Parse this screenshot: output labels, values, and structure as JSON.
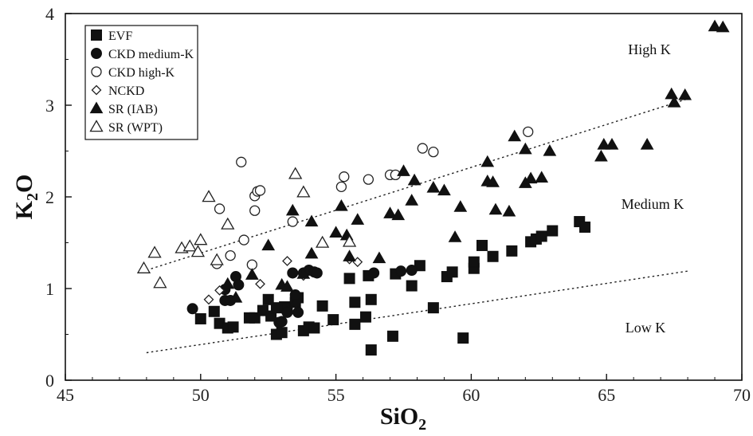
{
  "chart_data": {
    "type": "scatter",
    "xlabel": "SiO",
    "xlabel_sub": "2",
    "ylabel": "K",
    "ylabel_sub": "2",
    "ylabel_tail": "O",
    "xlim": [
      45,
      70
    ],
    "ylim": [
      0,
      4
    ],
    "xticks": [
      "45",
      "50",
      "55",
      "60",
      "65",
      "70"
    ],
    "yticks": [
      "0",
      "1",
      "2",
      "3",
      "4"
    ],
    "grid": false,
    "legend_position": "top-left",
    "annotations": [
      "High K",
      "Medium K",
      "Low K"
    ],
    "divider_lines": [
      {
        "name": "high-medium-boundary",
        "points": [
          [
            48,
            1.2
          ],
          [
            68,
            3.07
          ]
        ]
      },
      {
        "name": "medium-low-boundary",
        "points": [
          [
            48,
            0.3
          ],
          [
            68,
            1.19
          ]
        ]
      }
    ],
    "series": [
      {
        "name": "EVF",
        "marker": "filled-square",
        "points": [
          [
            50.0,
            0.67
          ],
          [
            50.5,
            0.75
          ],
          [
            50.7,
            0.62
          ],
          [
            51.0,
            0.57
          ],
          [
            51.2,
            0.58
          ],
          [
            51.8,
            0.68
          ],
          [
            52.0,
            0.68
          ],
          [
            52.3,
            0.76
          ],
          [
            52.5,
            0.88
          ],
          [
            52.6,
            0.7
          ],
          [
            52.8,
            0.5
          ],
          [
            52.8,
            0.79
          ],
          [
            53.0,
            0.52
          ],
          [
            53.1,
            0.8
          ],
          [
            53.2,
            0.78
          ],
          [
            53.5,
            0.85
          ],
          [
            53.6,
            0.9
          ],
          [
            53.8,
            0.54
          ],
          [
            54.0,
            0.58
          ],
          [
            54.2,
            0.57
          ],
          [
            54.5,
            0.81
          ],
          [
            54.9,
            0.66
          ],
          [
            55.5,
            1.11
          ],
          [
            55.7,
            0.85
          ],
          [
            55.7,
            0.61
          ],
          [
            56.1,
            0.69
          ],
          [
            56.2,
            1.14
          ],
          [
            56.3,
            0.88
          ],
          [
            56.3,
            0.33
          ],
          [
            57.1,
            0.48
          ],
          [
            57.2,
            1.16
          ],
          [
            57.8,
            1.03
          ],
          [
            58.1,
            1.25
          ],
          [
            58.6,
            0.79
          ],
          [
            59.1,
            1.13
          ],
          [
            59.3,
            1.18
          ],
          [
            59.7,
            0.46
          ],
          [
            60.1,
            1.22
          ],
          [
            60.1,
            1.29
          ],
          [
            60.4,
            1.47
          ],
          [
            60.8,
            1.35
          ],
          [
            61.5,
            1.41
          ],
          [
            62.2,
            1.51
          ],
          [
            62.4,
            1.54
          ],
          [
            62.6,
            1.57
          ],
          [
            63.0,
            1.63
          ],
          [
            64.0,
            1.73
          ],
          [
            64.2,
            1.67
          ]
        ]
      },
      {
        "name": "CKD medium-K",
        "marker": "filled-circle",
        "points": [
          [
            49.7,
            0.78
          ],
          [
            50.9,
            0.99
          ],
          [
            50.9,
            0.87
          ],
          [
            51.1,
            0.87
          ],
          [
            51.3,
            1.13
          ],
          [
            51.4,
            1.04
          ],
          [
            52.9,
            0.63
          ],
          [
            53.0,
            0.64
          ],
          [
            53.2,
            0.74
          ],
          [
            53.4,
            1.17
          ],
          [
            53.5,
            0.93
          ],
          [
            53.6,
            0.74
          ],
          [
            53.8,
            1.17
          ],
          [
            54.0,
            1.2
          ],
          [
            54.2,
            1.18
          ],
          [
            54.3,
            1.17
          ],
          [
            56.4,
            1.17
          ],
          [
            57.4,
            1.19
          ],
          [
            57.8,
            1.2
          ]
        ]
      },
      {
        "name": "CKD high-K",
        "marker": "open-circle",
        "points": [
          [
            50.6,
            1.27
          ],
          [
            50.7,
            1.87
          ],
          [
            51.1,
            1.36
          ],
          [
            51.5,
            2.38
          ],
          [
            51.6,
            1.53
          ],
          [
            51.9,
            1.26
          ],
          [
            52.0,
            2.01
          ],
          [
            52.0,
            1.85
          ],
          [
            52.1,
            2.06
          ],
          [
            52.2,
            2.07
          ],
          [
            53.4,
            1.73
          ],
          [
            55.2,
            2.11
          ],
          [
            55.3,
            2.22
          ],
          [
            56.2,
            2.19
          ],
          [
            57.0,
            2.24
          ],
          [
            57.2,
            2.24
          ],
          [
            58.2,
            2.53
          ],
          [
            58.6,
            2.49
          ],
          [
            62.1,
            2.71
          ]
        ]
      },
      {
        "name": "NCKD",
        "marker": "open-diamond",
        "points": [
          [
            50.3,
            0.88
          ],
          [
            50.7,
            0.98
          ],
          [
            52.2,
            1.05
          ],
          [
            53.2,
            1.3
          ],
          [
            53.8,
            1.14
          ],
          [
            55.5,
            1.32
          ],
          [
            55.8,
            1.29
          ]
        ]
      },
      {
        "name": "SR (IAB)",
        "marker": "filled-triangle",
        "points": [
          [
            51.0,
            1.05
          ],
          [
            51.3,
            0.9
          ],
          [
            51.9,
            1.15
          ],
          [
            52.5,
            1.47
          ],
          [
            53.0,
            1.04
          ],
          [
            53.2,
            1.02
          ],
          [
            53.4,
            1.85
          ],
          [
            53.8,
            1.16
          ],
          [
            54.1,
            1.38
          ],
          [
            54.1,
            1.73
          ],
          [
            55.0,
            1.61
          ],
          [
            55.2,
            1.9
          ],
          [
            55.4,
            1.58
          ],
          [
            55.5,
            1.35
          ],
          [
            55.8,
            1.75
          ],
          [
            56.6,
            1.33
          ],
          [
            57.0,
            1.82
          ],
          [
            57.3,
            1.8
          ],
          [
            57.5,
            2.28
          ],
          [
            57.8,
            1.96
          ],
          [
            57.9,
            2.18
          ],
          [
            58.6,
            2.1
          ],
          [
            59.0,
            2.07
          ],
          [
            59.4,
            1.56
          ],
          [
            59.6,
            1.89
          ],
          [
            60.6,
            2.38
          ],
          [
            60.6,
            2.17
          ],
          [
            60.8,
            2.16
          ],
          [
            60.9,
            1.86
          ],
          [
            61.4,
            1.84
          ],
          [
            61.6,
            2.66
          ],
          [
            62.0,
            2.52
          ],
          [
            62.0,
            2.15
          ],
          [
            62.2,
            2.2
          ],
          [
            62.6,
            2.21
          ],
          [
            62.9,
            2.5
          ],
          [
            64.8,
            2.44
          ],
          [
            64.9,
            2.57
          ],
          [
            65.2,
            2.57
          ],
          [
            66.5,
            2.57
          ],
          [
            67.4,
            3.12
          ],
          [
            67.5,
            3.03
          ],
          [
            67.9,
            3.11
          ],
          [
            69.0,
            3.86
          ],
          [
            69.3,
            3.85
          ]
        ]
      },
      {
        "name": "SR (WPT)",
        "marker": "open-triangle",
        "points": [
          [
            47.9,
            1.22
          ],
          [
            48.3,
            1.39
          ],
          [
            48.5,
            1.06
          ],
          [
            49.3,
            1.44
          ],
          [
            49.6,
            1.46
          ],
          [
            49.9,
            1.4
          ],
          [
            50.0,
            1.53
          ],
          [
            50.3,
            2.0
          ],
          [
            50.6,
            1.31
          ],
          [
            51.0,
            1.7
          ],
          [
            53.5,
            2.25
          ],
          [
            53.8,
            2.05
          ],
          [
            54.5,
            1.5
          ],
          [
            55.5,
            1.51
          ]
        ]
      }
    ]
  }
}
